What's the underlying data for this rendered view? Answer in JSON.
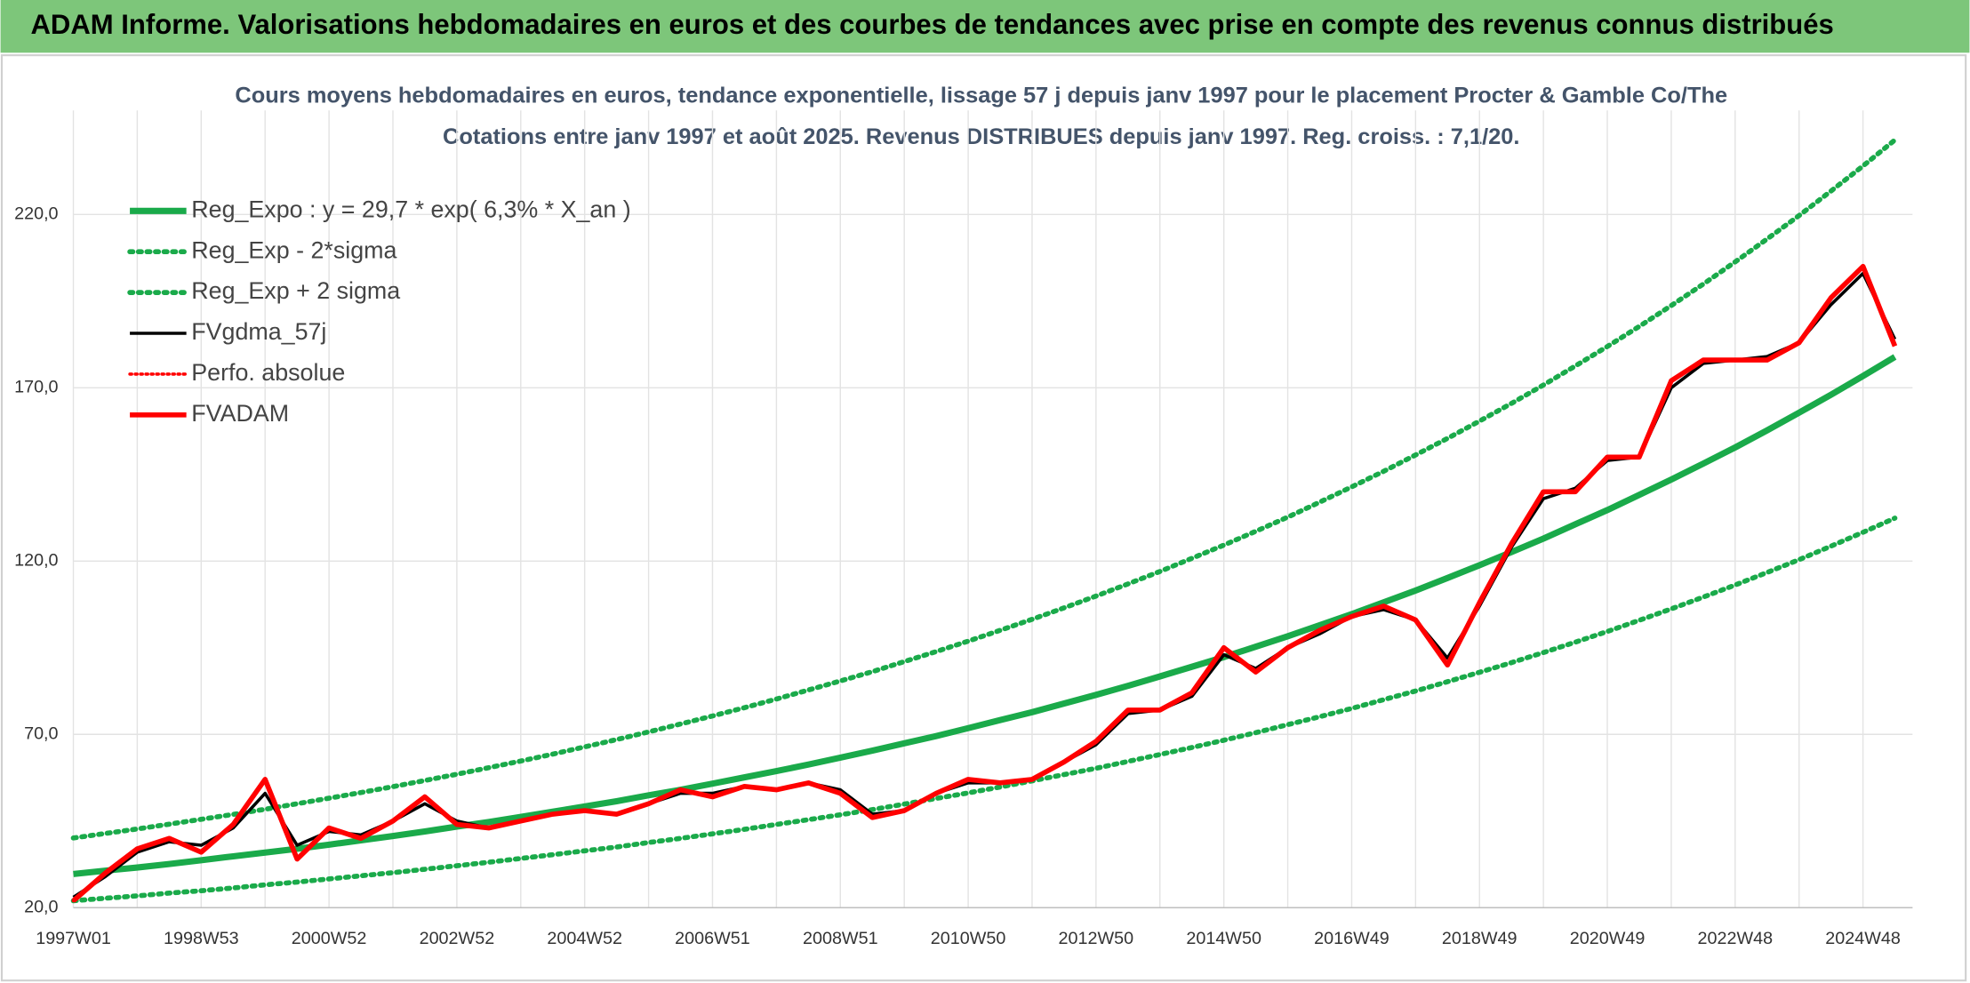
{
  "header": {
    "title": "ADAM Informe. Valorisations hebdomadaires en euros et des courbes de tendances avec prise en compte des revenus connus distribués"
  },
  "chart_data": {
    "type": "line",
    "title": "Cours moyens hebdomadaires en euros, tendance exponentielle, lissage 57 j depuis janv 1997 pour le placement Procter & Gamble Co/The",
    "subtitle": "Cotations entre janv 1997 et août 2025. Revenus DISTRIBUES depuis janv 1997. Reg. croiss. : 7,1/20.",
    "categories": [
      "1997W01",
      null,
      null,
      null,
      "1998W53",
      null,
      null,
      null,
      "2000W52",
      null,
      null,
      null,
      "2002W52",
      null,
      null,
      null,
      "2004W52",
      null,
      null,
      null,
      "2006W51",
      null,
      null,
      null,
      "2008W51",
      null,
      null,
      null,
      "2010W50",
      null,
      null,
      null,
      "2012W50",
      null,
      null,
      null,
      "2014W50",
      null,
      null,
      null,
      "2016W49",
      null,
      null,
      null,
      "2018W49",
      null,
      null,
      null,
      "2020W49",
      null,
      null,
      null,
      "2022W48",
      null,
      null,
      null,
      "2024W48",
      null
    ],
    "ylim": [
      20,
      250
    ],
    "yticks": [
      {
        "value": 20,
        "label": "20,0"
      },
      {
        "value": 70,
        "label": "70,0"
      },
      {
        "value": 120,
        "label": "120,0"
      },
      {
        "value": 170,
        "label": "170,0"
      },
      {
        "value": 220,
        "label": "220,0"
      }
    ],
    "grid": true,
    "legend": "upper left",
    "series": [
      {
        "name": "Reg_Expo : y = 29,7 * exp( 6,3% *  X_an )",
        "color": "#1aaa4a",
        "style": "solid",
        "width": 5,
        "values": [
          29.7,
          30.7,
          31.6,
          32.6,
          33.7,
          34.8,
          35.9,
          37.0,
          38.2,
          39.4,
          40.7,
          42.0,
          43.4,
          44.7,
          46.2,
          47.7,
          49.2,
          50.7,
          52.4,
          54.0,
          55.8,
          57.6,
          59.4,
          61.3,
          63.3,
          65.3,
          67.4,
          69.5,
          71.8,
          74.1,
          76.4,
          78.9,
          81.4,
          84.0,
          86.7,
          89.5,
          92.3,
          95.3,
          98.3,
          101.5,
          104.7,
          108.1,
          111.5,
          115.1,
          118.8,
          122.6,
          126.5,
          130.6,
          134.7,
          139.1,
          143.5,
          148.1,
          152.8,
          157.7,
          162.8,
          168.0,
          173.4,
          178.9
        ]
      },
      {
        "name": "Reg_Exp - 2*sigma",
        "color": "#1aaa4a",
        "style": "dotted",
        "width": 4,
        "values": [
          22.0,
          22.7,
          23.4,
          24.2,
          24.9,
          25.7,
          26.6,
          27.4,
          28.3,
          29.2,
          30.1,
          31.1,
          32.1,
          33.1,
          34.2,
          35.3,
          36.4,
          37.5,
          38.8,
          40.0,
          41.3,
          42.6,
          44.0,
          45.4,
          46.8,
          48.3,
          49.9,
          51.5,
          53.1,
          54.8,
          56.6,
          58.4,
          60.2,
          62.2,
          64.2,
          66.2,
          68.3,
          70.5,
          72.8,
          75.1,
          77.5,
          80.0,
          82.5,
          85.2,
          87.9,
          90.7,
          93.6,
          96.6,
          99.7,
          102.9,
          106.2,
          109.6,
          113.1,
          116.7,
          120.4,
          124.3,
          128.3,
          132.4
        ]
      },
      {
        "name": "Reg_Exp + 2 sigma",
        "color": "#1aaa4a",
        "style": "dotted",
        "width": 4,
        "values": [
          40.1,
          41.4,
          42.7,
          44.1,
          45.5,
          46.9,
          48.4,
          50.0,
          51.6,
          53.2,
          54.9,
          56.7,
          58.5,
          60.4,
          62.3,
          64.3,
          66.4,
          68.5,
          70.7,
          73.0,
          75.3,
          77.7,
          80.2,
          82.8,
          85.4,
          88.1,
          91.0,
          93.9,
          96.9,
          100.0,
          103.2,
          106.5,
          109.9,
          113.4,
          117.0,
          120.8,
          124.6,
          128.6,
          132.7,
          137.0,
          141.4,
          145.9,
          150.6,
          155.4,
          160.4,
          165.5,
          170.8,
          176.3,
          181.9,
          187.7,
          193.7,
          199.9,
          206.3,
          212.9,
          219.7,
          226.8,
          234.0,
          241.5
        ]
      },
      {
        "name": "FVgdma_57j",
        "color": "#000000",
        "style": "solid",
        "width": 2.5,
        "values": [
          23,
          29,
          36,
          39,
          38,
          43,
          53,
          38,
          42,
          41,
          45,
          50,
          45,
          43,
          45,
          47,
          48,
          47,
          50,
          53,
          53,
          55,
          54,
          56,
          54,
          47,
          48,
          53,
          56,
          56,
          57,
          62,
          67,
          76,
          77,
          81,
          93,
          89,
          95,
          99,
          104,
          106,
          103,
          92,
          107,
          124,
          138,
          141,
          149,
          150,
          170,
          177,
          178,
          179,
          183,
          194,
          203,
          184
        ]
      },
      {
        "name": "Perfo. absolue",
        "color": "#ff0000",
        "style": "dotted",
        "width": 2.5,
        "values": [
          22,
          30,
          37,
          40,
          36,
          44,
          57,
          34,
          43,
          40,
          45,
          52,
          44,
          43,
          45,
          47,
          48,
          47,
          50,
          54,
          52,
          55,
          54,
          56,
          53,
          46,
          48,
          53,
          57,
          56,
          57,
          62,
          68,
          77,
          77,
          82,
          95,
          88,
          95,
          100,
          104,
          107,
          103,
          90,
          108,
          125,
          140,
          140,
          150,
          150,
          172,
          178,
          178,
          178,
          183,
          196,
          205,
          182
        ]
      },
      {
        "name": "FVADAM",
        "color": "#ff0000",
        "style": "solid",
        "width": 4,
        "values": [
          22,
          30,
          37,
          40,
          36,
          44,
          57,
          34,
          43,
          40,
          45,
          52,
          44,
          43,
          45,
          47,
          48,
          47,
          50,
          54,
          52,
          55,
          54,
          56,
          53,
          46,
          48,
          53,
          57,
          56,
          57,
          62,
          68,
          77,
          77,
          82,
          95,
          88,
          95,
          100,
          104,
          107,
          103,
          90,
          108,
          125,
          140,
          140,
          150,
          150,
          172,
          178,
          178,
          178,
          183,
          196,
          205,
          182
        ]
      }
    ]
  }
}
